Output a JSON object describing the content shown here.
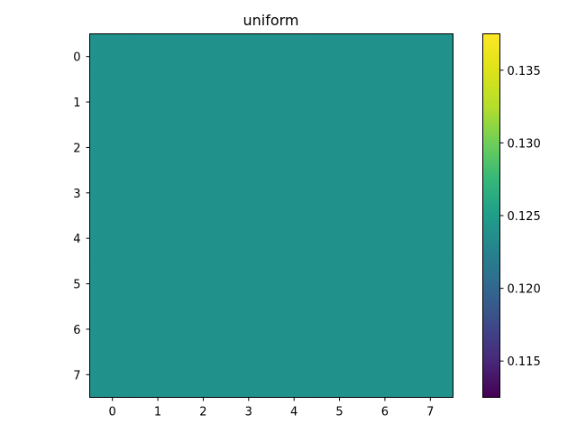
{
  "chart_data": {
    "type": "heatmap",
    "title": "uniform",
    "xlabel": "",
    "ylabel": "",
    "x_ticks": [
      "0",
      "1",
      "2",
      "3",
      "4",
      "5",
      "6",
      "7"
    ],
    "y_ticks": [
      "0",
      "1",
      "2",
      "3",
      "4",
      "5",
      "6",
      "7"
    ],
    "rows": 8,
    "cols": 8,
    "values": [
      [
        0.125,
        0.125,
        0.125,
        0.125,
        0.125,
        0.125,
        0.125,
        0.125
      ],
      [
        0.125,
        0.125,
        0.125,
        0.125,
        0.125,
        0.125,
        0.125,
        0.125
      ],
      [
        0.125,
        0.125,
        0.125,
        0.125,
        0.125,
        0.125,
        0.125,
        0.125
      ],
      [
        0.125,
        0.125,
        0.125,
        0.125,
        0.125,
        0.125,
        0.125,
        0.125
      ],
      [
        0.125,
        0.125,
        0.125,
        0.125,
        0.125,
        0.125,
        0.125,
        0.125
      ],
      [
        0.125,
        0.125,
        0.125,
        0.125,
        0.125,
        0.125,
        0.125,
        0.125
      ],
      [
        0.125,
        0.125,
        0.125,
        0.125,
        0.125,
        0.125,
        0.125,
        0.125
      ],
      [
        0.125,
        0.125,
        0.125,
        0.125,
        0.125,
        0.125,
        0.125,
        0.125
      ]
    ],
    "colormap": "viridis",
    "colorbar": {
      "range": [
        0.1125,
        0.1375
      ],
      "ticks": [
        "0.115",
        "0.120",
        "0.125",
        "0.130",
        "0.135"
      ],
      "tick_values": [
        0.115,
        0.12,
        0.125,
        0.13,
        0.135
      ]
    },
    "cell_color": "#21918c",
    "grid": false
  }
}
